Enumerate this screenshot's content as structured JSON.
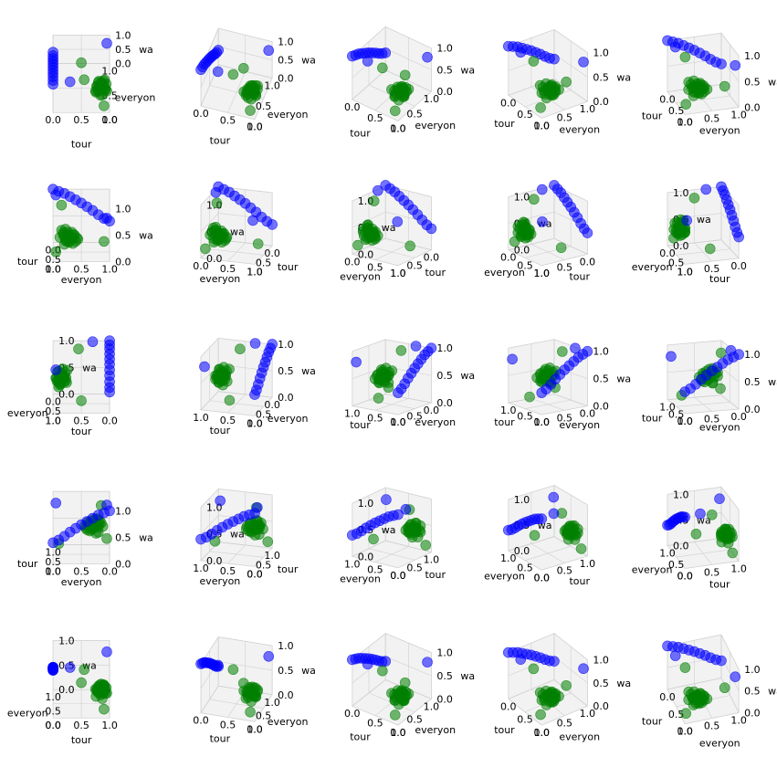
{
  "figure": {
    "rows": 5,
    "cols": 5
  },
  "chart_data": {
    "type": "scatter",
    "projection": "3d",
    "axes": {
      "x": "tour",
      "y": "everyon",
      "z": "wa"
    },
    "axis_range": [
      0,
      1
    ],
    "ticks": [
      "0.0",
      "0.5",
      "1.0"
    ],
    "grid": true,
    "pane_color": "#f2f2f2",
    "series": [
      {
        "color": "#0000ff",
        "values": [
          {
            "x": 0.0,
            "y": 0.0,
            "z": 1.0
          },
          {
            "x": 0.0,
            "y": 0.1,
            "z": 0.96
          },
          {
            "x": 0.0,
            "y": 0.2,
            "z": 0.92
          },
          {
            "x": 0.0,
            "y": 0.3,
            "z": 0.86
          },
          {
            "x": 0.0,
            "y": 0.4,
            "z": 0.8
          },
          {
            "x": 0.0,
            "y": 0.5,
            "z": 0.74
          },
          {
            "x": 0.0,
            "y": 0.6,
            "z": 0.67
          },
          {
            "x": 0.0,
            "y": 0.7,
            "z": 0.6
          },
          {
            "x": 0.0,
            "y": 0.8,
            "z": 0.52
          },
          {
            "x": 0.0,
            "y": 0.9,
            "z": 0.45
          },
          {
            "x": 0.0,
            "y": 1.0,
            "z": 0.4
          },
          {
            "x": 0.3,
            "y": 0.05,
            "z": 1.0
          },
          {
            "x": 0.95,
            "y": 0.95,
            "z": 0.8
          }
        ]
      },
      {
        "color": "#008000",
        "values": [
          {
            "x": 0.8,
            "y": 0.2,
            "z": 0.4
          },
          {
            "x": 0.85,
            "y": 0.25,
            "z": 0.45
          },
          {
            "x": 0.9,
            "y": 0.3,
            "z": 0.35
          },
          {
            "x": 0.75,
            "y": 0.15,
            "z": 0.5
          },
          {
            "x": 0.88,
            "y": 0.35,
            "z": 0.3
          },
          {
            "x": 0.82,
            "y": 0.28,
            "z": 0.42
          },
          {
            "x": 0.95,
            "y": 0.22,
            "z": 0.38
          },
          {
            "x": 0.78,
            "y": 0.32,
            "z": 0.36
          },
          {
            "x": 0.92,
            "y": 0.18,
            "z": 0.48
          },
          {
            "x": 0.86,
            "y": 0.4,
            "z": 0.33
          },
          {
            "x": 0.8,
            "y": 0.36,
            "z": 0.44
          },
          {
            "x": 0.9,
            "y": 0.26,
            "z": 0.52
          },
          {
            "x": 0.76,
            "y": 0.24,
            "z": 0.3
          },
          {
            "x": 0.84,
            "y": 0.12,
            "z": 0.4
          },
          {
            "x": 0.94,
            "y": 0.34,
            "z": 0.42
          },
          {
            "x": 0.87,
            "y": 0.2,
            "z": 0.28
          },
          {
            "x": 0.81,
            "y": 0.42,
            "z": 0.38
          },
          {
            "x": 0.89,
            "y": 0.38,
            "z": 0.46
          },
          {
            "x": 0.77,
            "y": 0.3,
            "z": 0.41
          },
          {
            "x": 0.93,
            "y": 0.28,
            "z": 0.34
          },
          {
            "x": 0.83,
            "y": 0.22,
            "z": 0.55
          },
          {
            "x": 0.91,
            "y": 0.44,
            "z": 0.39
          },
          {
            "x": 0.79,
            "y": 0.18,
            "z": 0.47
          },
          {
            "x": 0.85,
            "y": 0.33,
            "z": 0.5
          },
          {
            "x": 0.55,
            "y": 0.15,
            "z": 0.9
          },
          {
            "x": 0.5,
            "y": 0.9,
            "z": 0.2
          },
          {
            "x": 0.9,
            "y": 0.05,
            "z": 0.15
          }
        ]
      }
    ],
    "panels": [
      {
        "azim": -90,
        "elev": 60
      },
      {
        "azim": -72,
        "elev": 50
      },
      {
        "azim": -54,
        "elev": 40
      },
      {
        "azim": -36,
        "elev": 30
      },
      {
        "azim": -18,
        "elev": 25
      },
      {
        "azim": 0,
        "elev": 20
      },
      {
        "azim": 18,
        "elev": 20
      },
      {
        "azim": 36,
        "elev": 20
      },
      {
        "azim": 54,
        "elev": 20
      },
      {
        "azim": 72,
        "elev": 20
      },
      {
        "azim": 90,
        "elev": 20
      },
      {
        "azim": 108,
        "elev": 20
      },
      {
        "azim": 126,
        "elev": 15
      },
      {
        "azim": 144,
        "elev": 15
      },
      {
        "azim": 162,
        "elev": 15
      },
      {
        "azim": 180,
        "elev": 20
      },
      {
        "azim": 198,
        "elev": 20
      },
      {
        "azim": 216,
        "elev": 20
      },
      {
        "azim": 234,
        "elev": 25
      },
      {
        "azim": 252,
        "elev": 25
      },
      {
        "azim": 270,
        "elev": 30
      },
      {
        "azim": 288,
        "elev": 30
      },
      {
        "azim": 306,
        "elev": 35
      },
      {
        "azim": 324,
        "elev": 35
      },
      {
        "azim": 342,
        "elev": 40
      }
    ]
  }
}
